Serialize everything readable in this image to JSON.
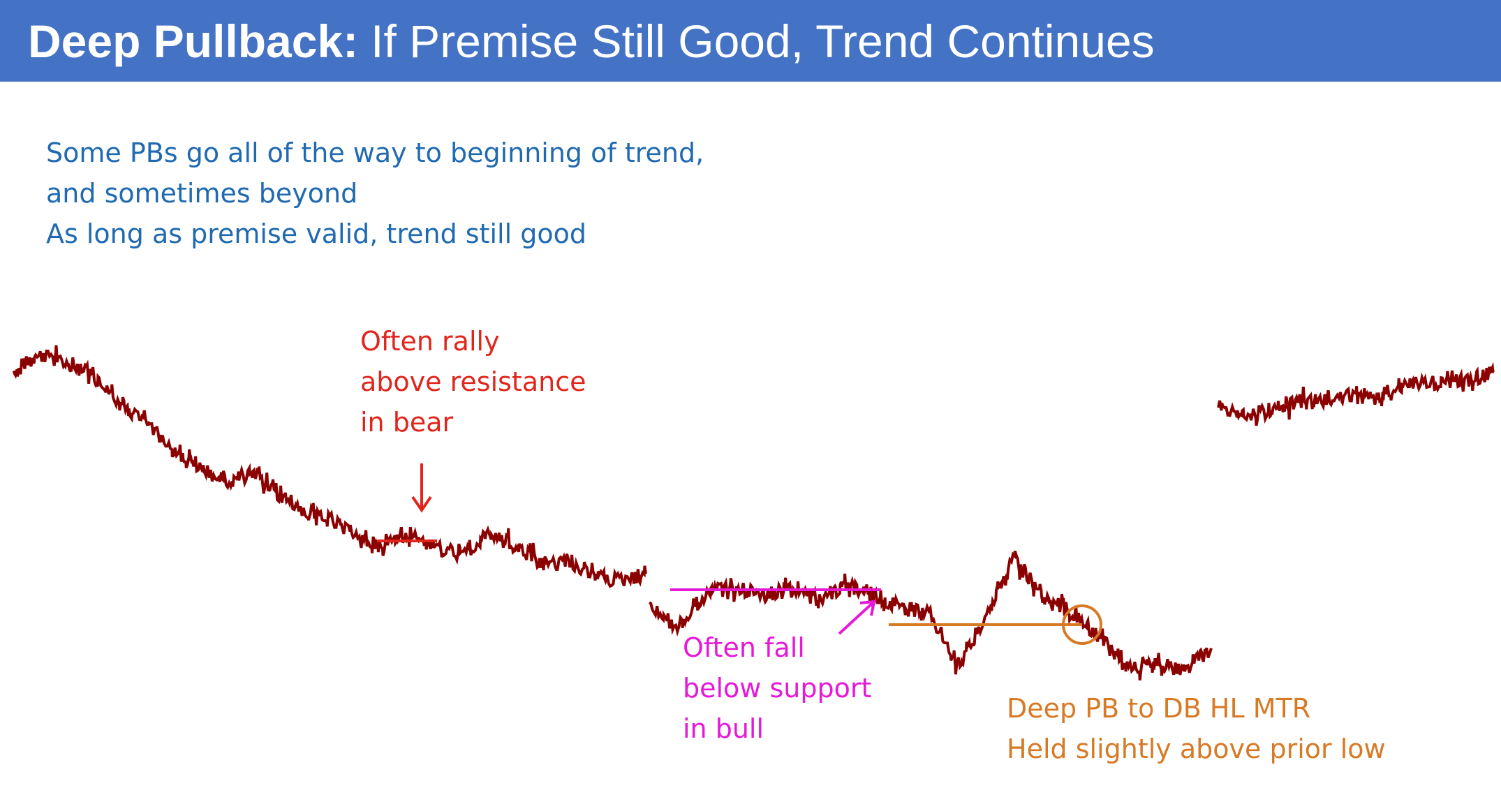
{
  "header": {
    "title_bold": "Deep Pullback:",
    "title_rest": "If Premise Still Good, Trend Continues"
  },
  "intro_lines": [
    "Some PBs go all of the way to beginning of trend,",
    "and sometimes beyond",
    "As long as premise valid, trend still good"
  ],
  "annotations": {
    "bear_rally": [
      "Often rally",
      "above resistance",
      "in bear"
    ],
    "bull_support": [
      "Often fall",
      "below support",
      "in bull"
    ],
    "deep_pb": [
      "Deep PB to DB HL MTR",
      "Held slightly above prior low"
    ]
  },
  "colors": {
    "header_bg": "#4472c4",
    "price_line": "#8b0000",
    "intro_text": "#1f6ab0",
    "bear_note": "#e0261c",
    "bull_note": "#e619d9",
    "deep_pb_note": "#d77a26"
  },
  "chart_data": [
    {
      "type": "line",
      "name": "bear-segment",
      "x": [
        0,
        1,
        2,
        3,
        4,
        5,
        6,
        7,
        8,
        9,
        10,
        11,
        12,
        13,
        14,
        15,
        16,
        17,
        18,
        19,
        20,
        21,
        22,
        23,
        24
      ],
      "y": [
        82,
        86,
        84,
        80,
        71,
        66,
        57,
        51,
        47,
        49,
        43,
        38,
        35,
        29,
        27,
        31,
        27,
        24,
        30,
        27,
        21,
        22,
        17,
        16,
        18
      ]
    },
    {
      "type": "line",
      "name": "bull-segment-1",
      "x": [
        0,
        1,
        2,
        3,
        4,
        5,
        6,
        7,
        8,
        9,
        10,
        11,
        12,
        13,
        14,
        15,
        16,
        17,
        18,
        19,
        20
      ],
      "y": [
        28,
        23,
        31,
        33,
        31,
        32,
        30,
        33,
        31,
        28,
        26,
        14,
        26,
        40,
        30,
        27,
        21,
        13,
        15,
        12,
        18
      ]
    },
    {
      "type": "line",
      "name": "bull-segment-2",
      "x": [
        0,
        1,
        2,
        3,
        4,
        5,
        6,
        7,
        8,
        9,
        10,
        11
      ],
      "y": [
        56,
        50,
        52,
        57,
        57,
        60,
        58,
        63,
        66,
        67,
        68,
        72
      ]
    }
  ]
}
